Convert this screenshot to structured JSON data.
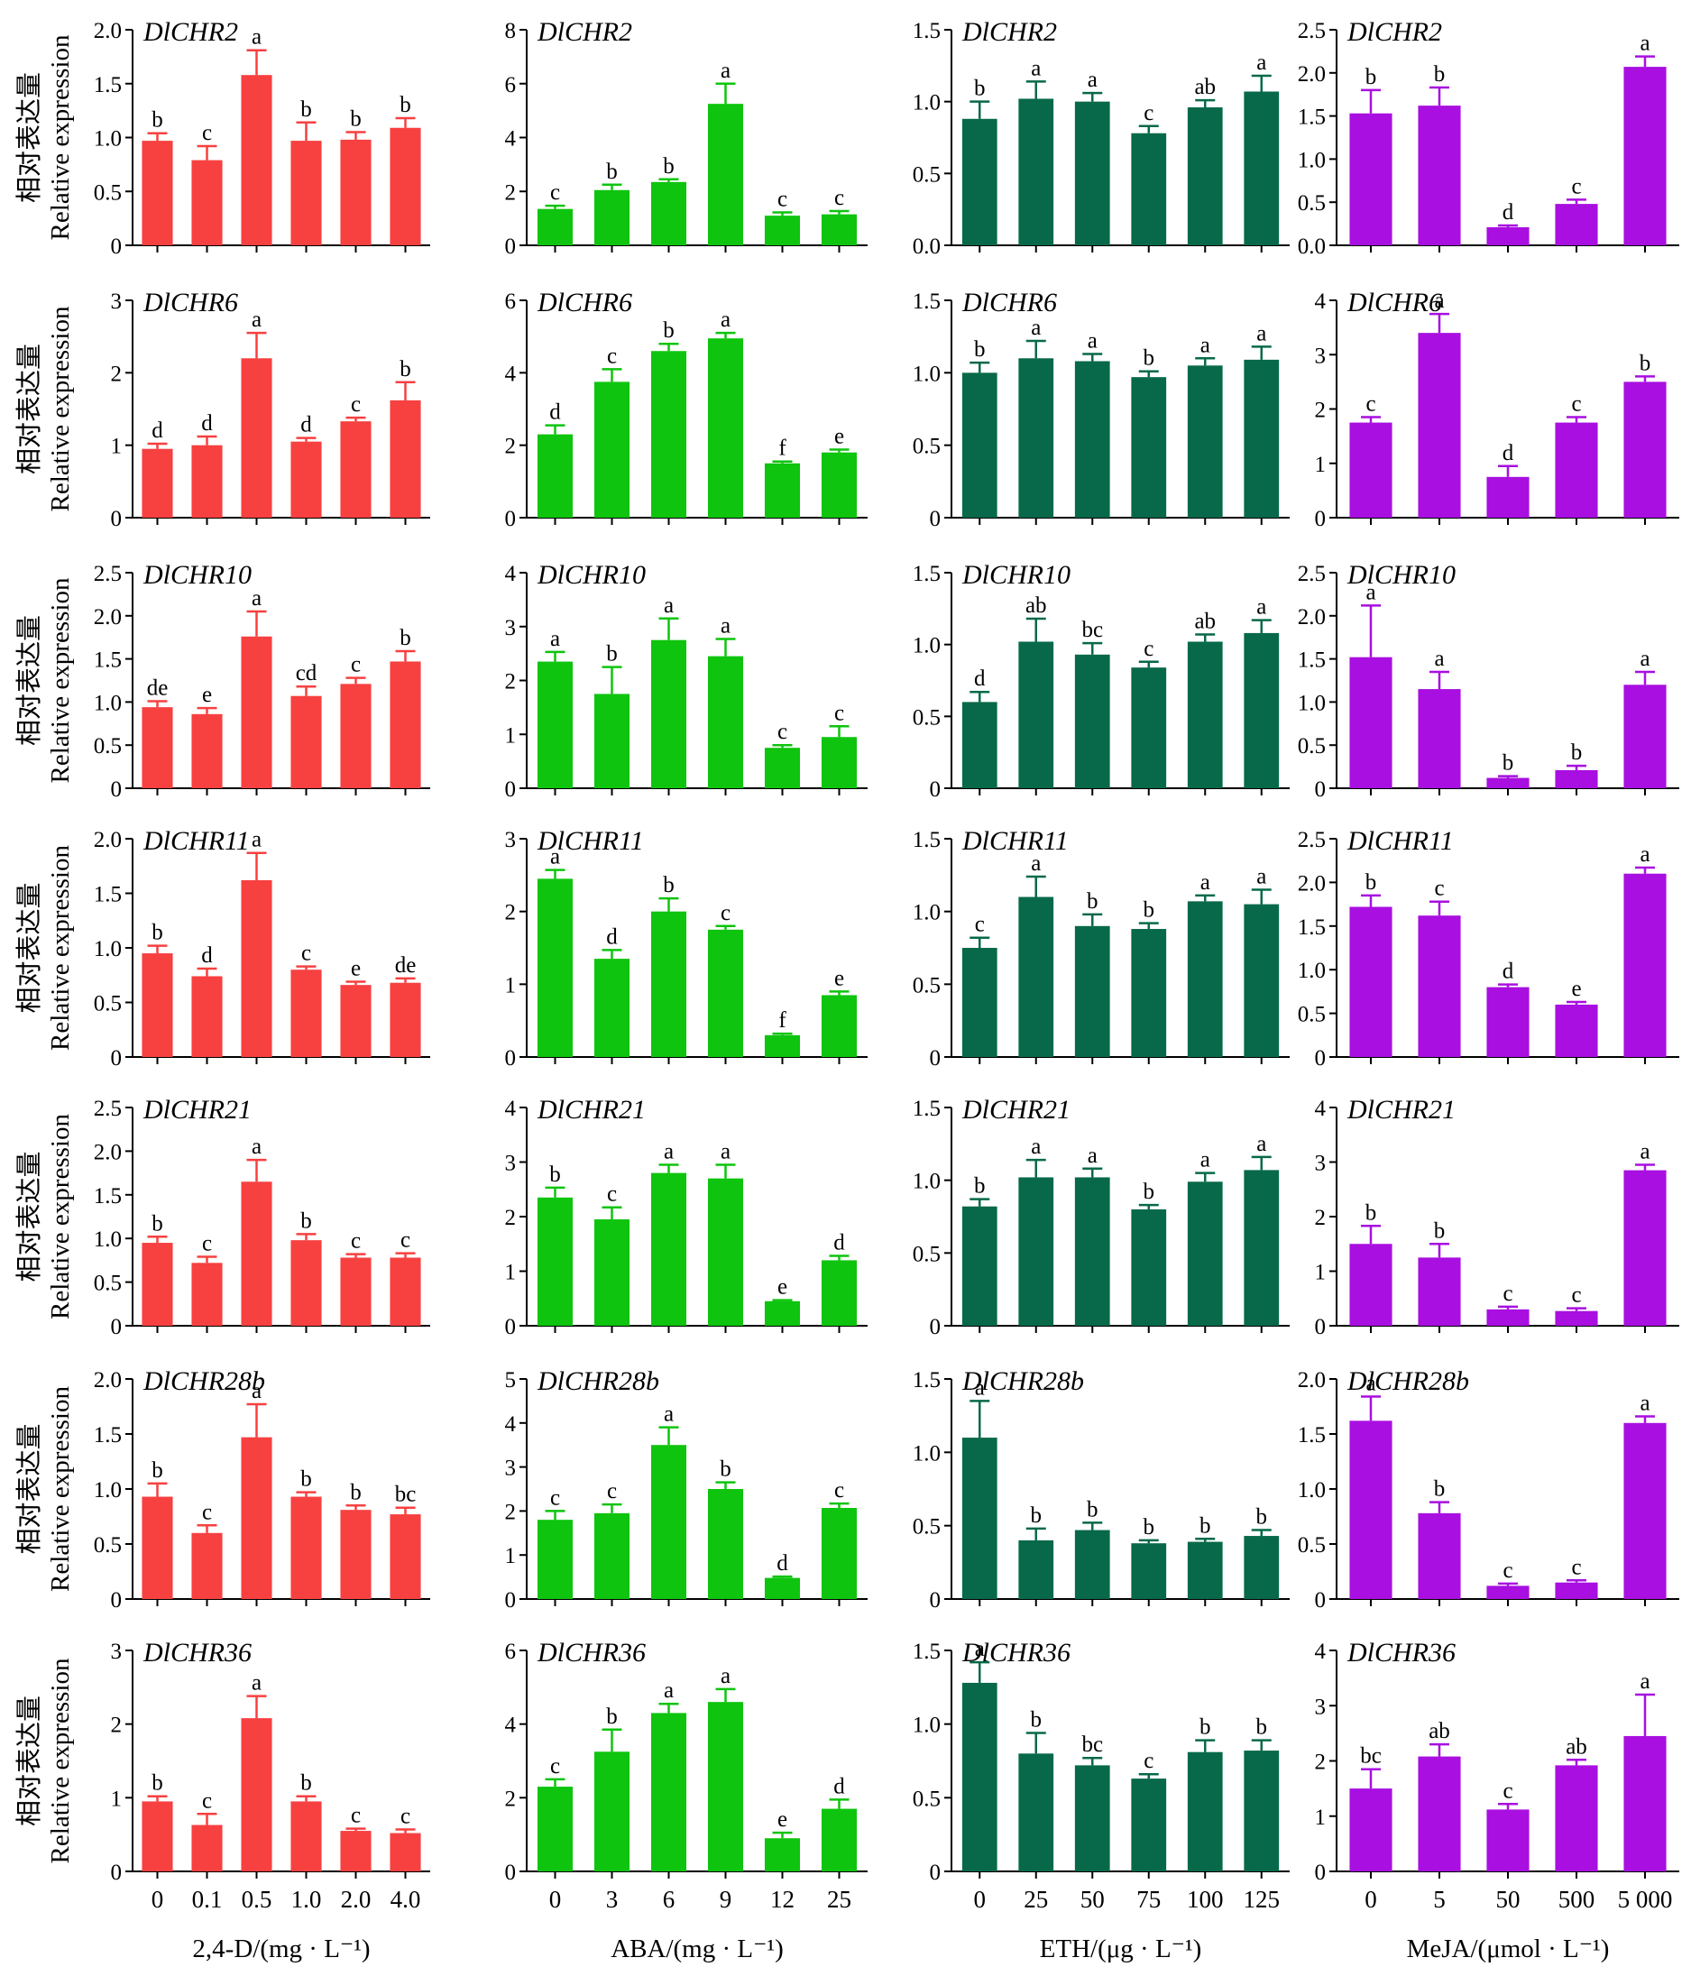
{
  "y_label": {
    "line1": "相对表达量",
    "line2": "Relative expression"
  },
  "colors": {
    "2,4-D": "#f74040",
    "ABA": "#0ec40e",
    "ETH": "#07694a",
    "MeJA": "#a80fe0"
  },
  "columns": [
    {
      "treatment": "2,4-D",
      "xlabel": "2,4-D/(mg · L⁻¹)",
      "xticks": [
        "0",
        "0.1",
        "0.5",
        "1.0",
        "2.0",
        "4.0"
      ]
    },
    {
      "treatment": "ABA",
      "xlabel": "ABA/(mg · L⁻¹)",
      "xticks": [
        "0",
        "3",
        "6",
        "9",
        "12",
        "25"
      ]
    },
    {
      "treatment": "ETH",
      "xlabel": "ETH/(μg · L⁻¹)",
      "xticks": [
        "0",
        "25",
        "50",
        "75",
        "100",
        "125"
      ]
    },
    {
      "treatment": "MeJA",
      "xlabel": "MeJA/(μmol · L⁻¹)",
      "xticks": [
        "0",
        "5",
        "50",
        "500",
        "5 000"
      ]
    }
  ],
  "chart_data": [
    {
      "type": "bar",
      "gene": "DlCHR2",
      "treatment": "2,4-D",
      "categories": [
        "0",
        "0.1",
        "0.5",
        "1.0",
        "2.0",
        "4.0"
      ],
      "values": [
        0.97,
        0.79,
        1.58,
        0.97,
        0.98,
        1.09
      ],
      "errors": [
        0.07,
        0.13,
        0.23,
        0.17,
        0.07,
        0.09
      ],
      "letters": [
        "b",
        "c",
        "a",
        "b",
        "b",
        "b"
      ],
      "ylim": [
        0,
        2.0
      ],
      "yticks": [
        "0",
        "0.5",
        "1.0",
        "1.5",
        "2.0"
      ]
    },
    {
      "type": "bar",
      "gene": "DlCHR2",
      "treatment": "ABA",
      "categories": [
        "0",
        "3",
        "6",
        "9",
        "12",
        "25"
      ],
      "values": [
        1.35,
        2.05,
        2.35,
        5.25,
        1.1,
        1.15
      ],
      "errors": [
        0.12,
        0.2,
        0.1,
        0.75,
        0.12,
        0.12
      ],
      "letters": [
        "c",
        "b",
        "b",
        "a",
        "c",
        "c"
      ],
      "ylim": [
        0,
        8
      ],
      "yticks": [
        "0",
        "2",
        "4",
        "6",
        "8"
      ]
    },
    {
      "type": "bar",
      "gene": "DlCHR2",
      "treatment": "ETH",
      "categories": [
        "0",
        "25",
        "50",
        "75",
        "100",
        "125"
      ],
      "values": [
        0.88,
        1.02,
        1.0,
        0.78,
        0.96,
        1.07
      ],
      "errors": [
        0.12,
        0.12,
        0.06,
        0.05,
        0.05,
        0.11
      ],
      "letters": [
        "b",
        "a",
        "a",
        "c",
        "ab",
        "a"
      ],
      "ylim": [
        0,
        1.5
      ],
      "yticks": [
        "0.0",
        "0.5",
        "1.0",
        "1.5"
      ]
    },
    {
      "type": "bar",
      "gene": "DlCHR2",
      "treatment": "MeJA",
      "categories": [
        "0",
        "5",
        "50",
        "500",
        "5 000"
      ],
      "values": [
        1.53,
        1.62,
        0.21,
        0.48,
        2.07
      ],
      "errors": [
        0.27,
        0.21,
        0.02,
        0.05,
        0.12
      ],
      "letters": [
        "b",
        "b",
        "d",
        "c",
        "a"
      ],
      "ylim": [
        0,
        2.5
      ],
      "yticks": [
        "0.0",
        "0.5",
        "1.0",
        "1.5",
        "2.0",
        "2.5"
      ]
    },
    {
      "type": "bar",
      "gene": "DlCHR6",
      "treatment": "2,4-D",
      "categories": [
        "0",
        "0.1",
        "0.5",
        "1.0",
        "2.0",
        "4.0"
      ],
      "values": [
        0.95,
        1.0,
        2.2,
        1.05,
        1.33,
        1.62
      ],
      "errors": [
        0.07,
        0.12,
        0.35,
        0.05,
        0.05,
        0.25
      ],
      "letters": [
        "d",
        "d",
        "a",
        "d",
        "c",
        "b"
      ],
      "ylim": [
        0,
        3
      ],
      "yticks": [
        "0",
        "1",
        "2",
        "3"
      ]
    },
    {
      "type": "bar",
      "gene": "DlCHR6",
      "treatment": "ABA",
      "categories": [
        "0",
        "3",
        "6",
        "9",
        "12",
        "25"
      ],
      "values": [
        2.3,
        3.75,
        4.6,
        4.95,
        1.5,
        1.8
      ],
      "errors": [
        0.25,
        0.35,
        0.2,
        0.15,
        0.05,
        0.08
      ],
      "letters": [
        "d",
        "c",
        "b",
        "a",
        "f",
        "e"
      ],
      "ylim": [
        0,
        6
      ],
      "yticks": [
        "0",
        "2",
        "4",
        "6"
      ]
    },
    {
      "type": "bar",
      "gene": "DlCHR6",
      "treatment": "ETH",
      "categories": [
        "0",
        "25",
        "50",
        "75",
        "100",
        "125"
      ],
      "values": [
        1.0,
        1.1,
        1.08,
        0.97,
        1.05,
        1.09
      ],
      "errors": [
        0.07,
        0.12,
        0.05,
        0.04,
        0.05,
        0.09
      ],
      "letters": [
        "b",
        "a",
        "a",
        "b",
        "a",
        "a"
      ],
      "ylim": [
        0,
        1.5
      ],
      "yticks": [
        "0",
        "0.5",
        "1.0",
        "1.5"
      ]
    },
    {
      "type": "bar",
      "gene": "DlCHR6",
      "treatment": "MeJA",
      "categories": [
        "0",
        "5",
        "50",
        "500",
        "5 000"
      ],
      "values": [
        1.75,
        3.4,
        0.75,
        1.75,
        2.5
      ],
      "errors": [
        0.1,
        0.35,
        0.2,
        0.1,
        0.1
      ],
      "letters": [
        "c",
        "a",
        "d",
        "c",
        "b"
      ],
      "ylim": [
        0,
        4
      ],
      "yticks": [
        "0",
        "1",
        "2",
        "3",
        "4"
      ]
    },
    {
      "type": "bar",
      "gene": "DlCHR10",
      "treatment": "2,4-D",
      "categories": [
        "0",
        "0.1",
        "0.5",
        "1.0",
        "2.0",
        "4.0"
      ],
      "values": [
        0.94,
        0.86,
        1.76,
        1.07,
        1.21,
        1.47
      ],
      "errors": [
        0.07,
        0.07,
        0.29,
        0.11,
        0.07,
        0.12
      ],
      "letters": [
        "de",
        "e",
        "a",
        "cd",
        "c",
        "b"
      ],
      "ylim": [
        0,
        2.5
      ],
      "yticks": [
        "0",
        "0.5",
        "1.0",
        "1.5",
        "2.0",
        "2.5"
      ]
    },
    {
      "type": "bar",
      "gene": "DlCHR10",
      "treatment": "ABA",
      "categories": [
        "0",
        "3",
        "6",
        "9",
        "12",
        "25"
      ],
      "values": [
        2.35,
        1.75,
        2.75,
        2.45,
        0.75,
        0.95
      ],
      "errors": [
        0.18,
        0.5,
        0.4,
        0.32,
        0.05,
        0.2
      ],
      "letters": [
        "a",
        "b",
        "a",
        "a",
        "c",
        "c"
      ],
      "ylim": [
        0,
        4
      ],
      "yticks": [
        "0",
        "1",
        "2",
        "3",
        "4"
      ]
    },
    {
      "type": "bar",
      "gene": "DlCHR10",
      "treatment": "ETH",
      "categories": [
        "0",
        "25",
        "50",
        "75",
        "100",
        "125"
      ],
      "values": [
        0.6,
        1.02,
        0.93,
        0.84,
        1.02,
        1.08
      ],
      "errors": [
        0.07,
        0.16,
        0.08,
        0.04,
        0.05,
        0.09
      ],
      "letters": [
        "d",
        "ab",
        "bc",
        "c",
        "ab",
        "a"
      ],
      "ylim": [
        0,
        1.5
      ],
      "yticks": [
        "0",
        "0.5",
        "1.0",
        "1.5"
      ]
    },
    {
      "type": "bar",
      "gene": "DlCHR10",
      "treatment": "MeJA",
      "categories": [
        "0",
        "5",
        "50",
        "500",
        "5 000"
      ],
      "values": [
        1.52,
        1.15,
        0.12,
        0.21,
        1.2
      ],
      "errors": [
        0.6,
        0.2,
        0.02,
        0.05,
        0.15
      ],
      "letters": [
        "a",
        "a",
        "b",
        "b",
        "a"
      ],
      "ylim": [
        0,
        2.5
      ],
      "yticks": [
        "0",
        "0.5",
        "1.0",
        "1.5",
        "2.0",
        "2.5"
      ]
    },
    {
      "type": "bar",
      "gene": "DlCHR11",
      "treatment": "2,4-D",
      "categories": [
        "0",
        "0.1",
        "0.5",
        "1.0",
        "2.0",
        "4.0"
      ],
      "values": [
        0.95,
        0.74,
        1.62,
        0.8,
        0.66,
        0.68
      ],
      "errors": [
        0.07,
        0.07,
        0.25,
        0.03,
        0.03,
        0.04
      ],
      "letters": [
        "b",
        "d",
        "a",
        "c",
        "e",
        "de"
      ],
      "ylim": [
        0,
        2.0
      ],
      "yticks": [
        "0",
        "0.5",
        "1.0",
        "1.5",
        "2.0"
      ]
    },
    {
      "type": "bar",
      "gene": "DlCHR11",
      "treatment": "ABA",
      "categories": [
        "0",
        "3",
        "6",
        "9",
        "12",
        "25"
      ],
      "values": [
        2.45,
        1.35,
        2.0,
        1.75,
        0.3,
        0.85
      ],
      "errors": [
        0.12,
        0.12,
        0.18,
        0.05,
        0.02,
        0.05
      ],
      "letters": [
        "a",
        "d",
        "b",
        "c",
        "f",
        "e"
      ],
      "ylim": [
        0,
        3
      ],
      "yticks": [
        "0",
        "1",
        "2",
        "3"
      ]
    },
    {
      "type": "bar",
      "gene": "DlCHR11",
      "treatment": "ETH",
      "categories": [
        "0",
        "25",
        "50",
        "75",
        "100",
        "125"
      ],
      "values": [
        0.75,
        1.1,
        0.9,
        0.88,
        1.07,
        1.05
      ],
      "errors": [
        0.07,
        0.14,
        0.08,
        0.04,
        0.04,
        0.1
      ],
      "letters": [
        "c",
        "a",
        "b",
        "b",
        "a",
        "a"
      ],
      "ylim": [
        0,
        1.5
      ],
      "yticks": [
        "0",
        "0.5",
        "1.0",
        "1.5"
      ]
    },
    {
      "type": "bar",
      "gene": "DlCHR11",
      "treatment": "MeJA",
      "categories": [
        "0",
        "5",
        "50",
        "500",
        "5 000"
      ],
      "values": [
        1.72,
        1.62,
        0.8,
        0.6,
        2.1
      ],
      "errors": [
        0.13,
        0.16,
        0.03,
        0.03,
        0.07
      ],
      "letters": [
        "b",
        "c",
        "d",
        "e",
        "a"
      ],
      "ylim": [
        0,
        2.5
      ],
      "yticks": [
        "0",
        "0.5",
        "1.0",
        "1.5",
        "2.0",
        "2.5"
      ]
    },
    {
      "type": "bar",
      "gene": "DlCHR21",
      "treatment": "2,4-D",
      "categories": [
        "0",
        "0.1",
        "0.5",
        "1.0",
        "2.0",
        "4.0"
      ],
      "values": [
        0.95,
        0.72,
        1.65,
        0.98,
        0.78,
        0.78
      ],
      "errors": [
        0.07,
        0.07,
        0.25,
        0.07,
        0.04,
        0.05
      ],
      "letters": [
        "b",
        "c",
        "a",
        "b",
        "c",
        "c"
      ],
      "ylim": [
        0,
        2.5
      ],
      "yticks": [
        "0",
        "0.5",
        "1.0",
        "1.5",
        "2.0",
        "2.5"
      ]
    },
    {
      "type": "bar",
      "gene": "DlCHR21",
      "treatment": "ABA",
      "categories": [
        "0",
        "3",
        "6",
        "9",
        "12",
        "25"
      ],
      "values": [
        2.35,
        1.95,
        2.8,
        2.7,
        0.45,
        1.2
      ],
      "errors": [
        0.18,
        0.22,
        0.15,
        0.25,
        0.02,
        0.08
      ],
      "letters": [
        "b",
        "c",
        "a",
        "a",
        "e",
        "d"
      ],
      "ylim": [
        0,
        4
      ],
      "yticks": [
        "0",
        "1",
        "2",
        "3",
        "4"
      ]
    },
    {
      "type": "bar",
      "gene": "DlCHR21",
      "treatment": "ETH",
      "categories": [
        "0",
        "25",
        "50",
        "75",
        "100",
        "125"
      ],
      "values": [
        0.82,
        1.02,
        1.02,
        0.8,
        0.99,
        1.07
      ],
      "errors": [
        0.05,
        0.12,
        0.06,
        0.03,
        0.06,
        0.09
      ],
      "letters": [
        "b",
        "a",
        "a",
        "b",
        "a",
        "a"
      ],
      "ylim": [
        0,
        1.5
      ],
      "yticks": [
        "0",
        "0.5",
        "1.0",
        "1.5"
      ]
    },
    {
      "type": "bar",
      "gene": "DlCHR21",
      "treatment": "MeJA",
      "categories": [
        "0",
        "5",
        "50",
        "500",
        "5 000"
      ],
      "values": [
        1.5,
        1.25,
        0.3,
        0.27,
        2.85
      ],
      "errors": [
        0.33,
        0.25,
        0.05,
        0.05,
        0.1
      ],
      "letters": [
        "b",
        "b",
        "c",
        "c",
        "a"
      ],
      "ylim": [
        0,
        4
      ],
      "yticks": [
        "0",
        "1",
        "2",
        "3",
        "4"
      ]
    },
    {
      "type": "bar",
      "gene": "DlCHR28b",
      "treatment": "2,4-D",
      "categories": [
        "0",
        "0.1",
        "0.5",
        "1.0",
        "2.0",
        "4.0"
      ],
      "values": [
        0.93,
        0.6,
        1.47,
        0.93,
        0.81,
        0.77
      ],
      "errors": [
        0.12,
        0.07,
        0.3,
        0.04,
        0.04,
        0.06
      ],
      "letters": [
        "b",
        "c",
        "a",
        "b",
        "b",
        "bc"
      ],
      "ylim": [
        0,
        2.0
      ],
      "yticks": [
        "0",
        "0.5",
        "1.0",
        "1.5",
        "2.0"
      ]
    },
    {
      "type": "bar",
      "gene": "DlCHR28b",
      "treatment": "ABA",
      "categories": [
        "0",
        "3",
        "6",
        "9",
        "12",
        "25"
      ],
      "values": [
        1.8,
        1.95,
        3.5,
        2.5,
        0.48,
        2.07
      ],
      "errors": [
        0.2,
        0.2,
        0.4,
        0.15,
        0.03,
        0.1
      ],
      "letters": [
        "c",
        "c",
        "a",
        "b",
        "d",
        "c"
      ],
      "ylim": [
        0,
        5
      ],
      "yticks": [
        "0",
        "1",
        "2",
        "3",
        "4",
        "5"
      ]
    },
    {
      "type": "bar",
      "gene": "DlCHR28b",
      "treatment": "ETH",
      "categories": [
        "0",
        "25",
        "50",
        "75",
        "100",
        "125"
      ],
      "values": [
        1.1,
        0.4,
        0.47,
        0.38,
        0.39,
        0.43
      ],
      "errors": [
        0.25,
        0.08,
        0.05,
        0.02,
        0.02,
        0.04
      ],
      "letters": [
        "a",
        "b",
        "b",
        "b",
        "b",
        "b"
      ],
      "ylim": [
        0,
        1.5
      ],
      "yticks": [
        "0",
        "0.5",
        "1.0",
        "1.5"
      ]
    },
    {
      "type": "bar",
      "gene": "DlCHR28b",
      "treatment": "MeJA",
      "categories": [
        "0",
        "5",
        "50",
        "500",
        "5 000"
      ],
      "values": [
        1.62,
        0.78,
        0.12,
        0.15,
        1.6
      ],
      "errors": [
        0.22,
        0.1,
        0.02,
        0.02,
        0.06
      ],
      "letters": [
        "a",
        "b",
        "c",
        "c",
        "a"
      ],
      "ylim": [
        0,
        2.0
      ],
      "yticks": [
        "0",
        "0.5",
        "1.0",
        "1.5",
        "2.0"
      ]
    },
    {
      "type": "bar",
      "gene": "DlCHR36",
      "treatment": "2,4-D",
      "categories": [
        "0",
        "0.1",
        "0.5",
        "1.0",
        "2.0",
        "4.0"
      ],
      "values": [
        0.95,
        0.63,
        2.08,
        0.95,
        0.55,
        0.52
      ],
      "errors": [
        0.07,
        0.15,
        0.3,
        0.07,
        0.03,
        0.05
      ],
      "letters": [
        "b",
        "c",
        "a",
        "b",
        "c",
        "c"
      ],
      "ylim": [
        0,
        3
      ],
      "yticks": [
        "0",
        "1",
        "2",
        "3"
      ]
    },
    {
      "type": "bar",
      "gene": "DlCHR36",
      "treatment": "ABA",
      "categories": [
        "0",
        "3",
        "6",
        "9",
        "12",
        "25"
      ],
      "values": [
        2.3,
        3.25,
        4.3,
        4.6,
        0.9,
        1.7
      ],
      "errors": [
        0.2,
        0.6,
        0.25,
        0.35,
        0.15,
        0.25
      ],
      "letters": [
        "c",
        "b",
        "a",
        "a",
        "e",
        "d"
      ],
      "ylim": [
        0,
        6
      ],
      "yticks": [
        "0",
        "2",
        "4",
        "6"
      ]
    },
    {
      "type": "bar",
      "gene": "DlCHR36",
      "treatment": "ETH",
      "categories": [
        "0",
        "25",
        "50",
        "75",
        "100",
        "125"
      ],
      "values": [
        1.28,
        0.8,
        0.72,
        0.63,
        0.81,
        0.82
      ],
      "errors": [
        0.14,
        0.14,
        0.05,
        0.03,
        0.08,
        0.07
      ],
      "letters": [
        "a",
        "b",
        "bc",
        "c",
        "b",
        "b"
      ],
      "ylim": [
        0,
        1.5
      ],
      "yticks": [
        "0",
        "0.5",
        "1.0",
        "1.5"
      ]
    },
    {
      "type": "bar",
      "gene": "DlCHR36",
      "treatment": "MeJA",
      "categories": [
        "0",
        "5",
        "50",
        "500",
        "5 000"
      ],
      "values": [
        1.5,
        2.08,
        1.12,
        1.92,
        2.45
      ],
      "errors": [
        0.35,
        0.22,
        0.1,
        0.1,
        0.75
      ],
      "letters": [
        "bc",
        "ab",
        "c",
        "ab",
        "a"
      ],
      "ylim": [
        0,
        4
      ],
      "yticks": [
        "0",
        "1",
        "2",
        "3",
        "4"
      ]
    }
  ]
}
